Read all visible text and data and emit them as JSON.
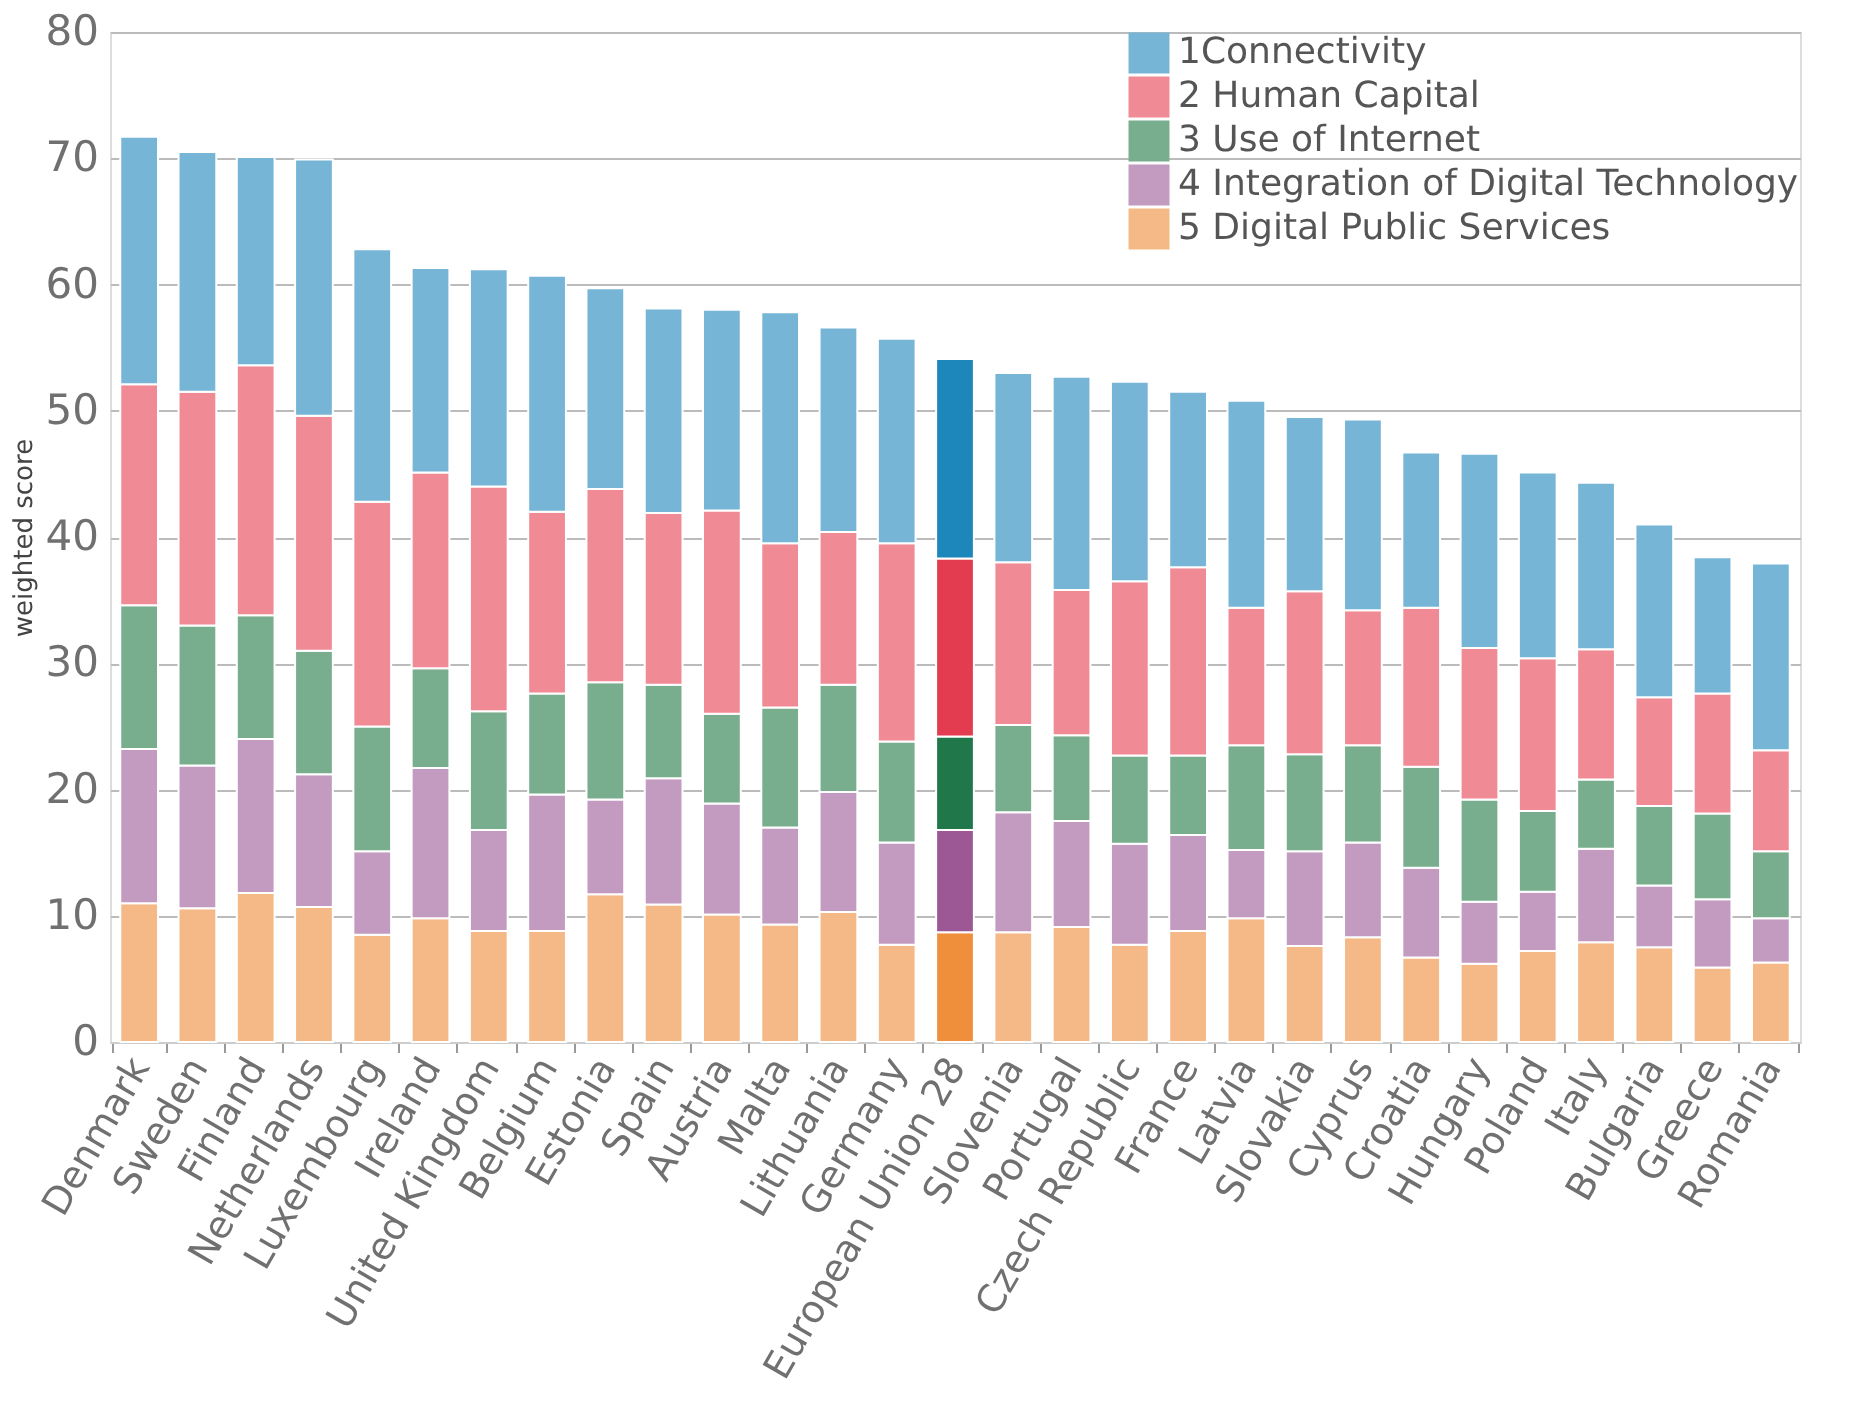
{
  "chart_data": {
    "type": "bar",
    "stacked": true,
    "ylabel": "weighted score",
    "categories": [
      "Denmark",
      "Sweden",
      "Finland",
      "Netherlands",
      "Luxembourg",
      "Ireland",
      "United Kingdom",
      "Belgium",
      "Estonia",
      "Spain",
      "Austria",
      "Malta",
      "Lithuania",
      "Germany",
      "European Union 28",
      "Slovenia",
      "Portugal",
      "Czech Republic",
      "France",
      "Latvia",
      "Slovakia",
      "Cyprus",
      "Croatia",
      "Hungary",
      "Poland",
      "Italy",
      "Bulgaria",
      "Greece",
      "Romania"
    ],
    "ylim": [
      0,
      80
    ],
    "yticks": [
      0,
      10,
      20,
      30,
      40,
      50,
      60,
      70,
      80
    ],
    "grid": "y",
    "legend": "top right",
    "series": [
      {
        "name": "5 Digital Public Services",
        "color": "#f5b987",
        "colors": [
          "#f5b987",
          "#f5b987",
          "#f5b987",
          "#f5b987",
          "#f5b987",
          "#f5b987",
          "#f5b987",
          "#f5b987",
          "#f5b987",
          "#f5b987",
          "#f5b987",
          "#f5b987",
          "#f5b987",
          "#f5b987",
          "#ef8f3b",
          "#f5b987",
          "#f5b987",
          "#f5b987",
          "#f5b987",
          "#f5b987",
          "#f5b987",
          "#f5b987",
          "#f5b987",
          "#f5b987",
          "#f5b987",
          "#f5b987",
          "#f5b987",
          "#f5b987",
          "#f5b987"
        ],
        "values": [
          11.0,
          10.6,
          11.8,
          10.7,
          8.5,
          9.8,
          8.8,
          8.8,
          11.7,
          10.9,
          10.1,
          9.3,
          10.3,
          7.7,
          8.7,
          8.7,
          9.1,
          7.7,
          8.8,
          9.8,
          7.6,
          8.3,
          6.7,
          6.2,
          7.2,
          7.9,
          7.5,
          5.9,
          6.3
        ]
      },
      {
        "name": "4 Integration of Digital Technology",
        "color": "#c39bc0",
        "colors": [
          "#c39bc0",
          "#c39bc0",
          "#c39bc0",
          "#c39bc0",
          "#c39bc0",
          "#c39bc0",
          "#c39bc0",
          "#c39bc0",
          "#c39bc0",
          "#c39bc0",
          "#c39bc0",
          "#c39bc0",
          "#c39bc0",
          "#c39bc0",
          "#9b5894",
          "#c39bc0",
          "#c39bc0",
          "#c39bc0",
          "#c39bc0",
          "#c39bc0",
          "#c39bc0",
          "#c39bc0",
          "#c39bc0",
          "#c39bc0",
          "#c39bc0",
          "#c39bc0",
          "#c39bc0",
          "#c39bc0",
          "#c39bc0"
        ],
        "values": [
          12.2,
          11.3,
          12.2,
          10.5,
          6.6,
          11.9,
          8.0,
          10.8,
          7.5,
          10.0,
          8.8,
          7.7,
          9.5,
          8.1,
          8.1,
          9.5,
          8.4,
          8.0,
          7.6,
          5.4,
          7.5,
          7.5,
          7.1,
          4.9,
          4.7,
          7.4,
          4.9,
          5.4,
          3.5
        ]
      },
      {
        "name": "3 Use of Internet",
        "color": "#78ae8d",
        "colors": [
          "#78ae8d",
          "#78ae8d",
          "#78ae8d",
          "#78ae8d",
          "#78ae8d",
          "#78ae8d",
          "#78ae8d",
          "#78ae8d",
          "#78ae8d",
          "#78ae8d",
          "#78ae8d",
          "#78ae8d",
          "#78ae8d",
          "#78ae8d",
          "#20784a",
          "#78ae8d",
          "#78ae8d",
          "#78ae8d",
          "#78ae8d",
          "#78ae8d",
          "#78ae8d",
          "#78ae8d",
          "#78ae8d",
          "#78ae8d",
          "#78ae8d",
          "#78ae8d",
          "#78ae8d",
          "#78ae8d",
          "#78ae8d"
        ],
        "values": [
          11.4,
          11.1,
          9.8,
          9.8,
          9.9,
          7.9,
          9.4,
          8.0,
          9.3,
          7.4,
          7.1,
          9.5,
          8.5,
          8.0,
          7.4,
          6.9,
          6.8,
          7.0,
          6.3,
          8.3,
          7.7,
          7.7,
          8.0,
          8.1,
          6.4,
          5.5,
          6.3,
          6.8,
          5.3
        ]
      },
      {
        "name": "2 Human Capital",
        "color": "#f08b95",
        "colors": [
          "#f08b95",
          "#f08b95",
          "#f08b95",
          "#f08b95",
          "#f08b95",
          "#f08b95",
          "#f08b95",
          "#f08b95",
          "#f08b95",
          "#f08b95",
          "#f08b95",
          "#f08b95",
          "#f08b95",
          "#f08b95",
          "#e33b4f",
          "#f08b95",
          "#f08b95",
          "#f08b95",
          "#f08b95",
          "#f08b95",
          "#f08b95",
          "#f08b95",
          "#f08b95",
          "#f08b95",
          "#f08b95",
          "#f08b95",
          "#f08b95",
          "#f08b95",
          "#f08b95"
        ],
        "values": [
          17.5,
          18.5,
          19.8,
          18.6,
          17.8,
          15.5,
          17.8,
          14.4,
          15.3,
          13.6,
          16.1,
          13.0,
          12.1,
          15.7,
          14.1,
          12.9,
          11.5,
          13.8,
          14.9,
          10.9,
          12.9,
          10.7,
          12.6,
          12.0,
          12.1,
          10.3,
          8.6,
          9.5,
          8.0
        ]
      },
      {
        "name": "1Connectivity",
        "color": "#77b5d7",
        "colors": [
          "#77b5d7",
          "#77b5d7",
          "#77b5d7",
          "#77b5d7",
          "#77b5d7",
          "#77b5d7",
          "#77b5d7",
          "#77b5d7",
          "#77b5d7",
          "#77b5d7",
          "#77b5d7",
          "#77b5d7",
          "#77b5d7",
          "#77b5d7",
          "#1d87bb",
          "#77b5d7",
          "#77b5d7",
          "#77b5d7",
          "#77b5d7",
          "#77b5d7",
          "#77b5d7",
          "#77b5d7",
          "#77b5d7",
          "#77b5d7",
          "#77b5d7",
          "#77b5d7",
          "#77b5d7",
          "#77b5d7",
          "#77b5d7"
        ],
        "values": [
          19.6,
          19.0,
          16.5,
          20.3,
          20.0,
          16.2,
          17.2,
          18.7,
          15.9,
          16.2,
          15.9,
          18.3,
          16.2,
          16.2,
          15.8,
          15.0,
          16.9,
          15.8,
          13.9,
          16.4,
          13.8,
          15.1,
          12.3,
          15.4,
          14.7,
          13.2,
          13.7,
          10.8,
          14.8
        ]
      }
    ]
  }
}
